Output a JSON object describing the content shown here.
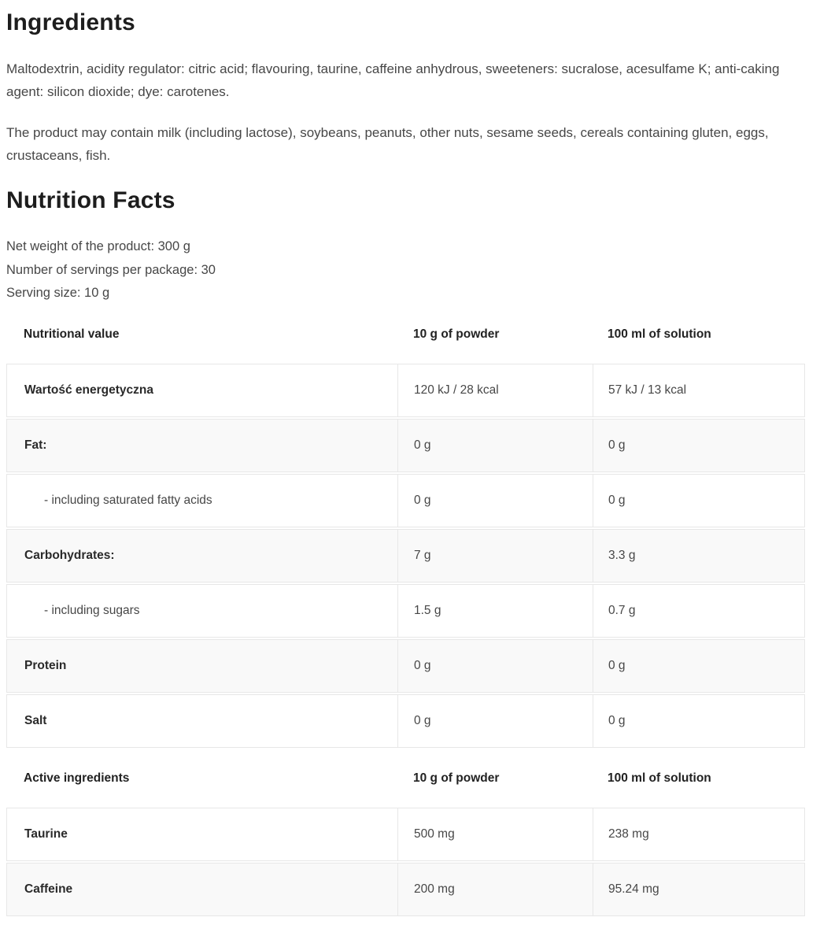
{
  "theme": {
    "heading": "#1d1d1d",
    "body-text": "#474747",
    "label-text": "#2a2a2a",
    "border": "#e7e7e7",
    "stripe": "#f9f9f9",
    "page-bg": "#ffffff"
  },
  "ingredients": {
    "title": "Ingredients",
    "paragraphs": [
      "Maltodextrin, acidity regulator: citric acid; flavouring, taurine, caffeine anhydrous, sweeteners: sucralose, acesulfame K; anti-caking agent: silicon dioxide; dye: carotenes.",
      "The product may contain milk (including lactose), soybeans, peanuts, other nuts, sesame seeds, cereals containing gluten, eggs, crustaceans, fish."
    ]
  },
  "nutrition": {
    "title": "Nutrition Facts",
    "info_lines": [
      "Net weight of the product: 300 g",
      "Number of servings per package: 30",
      "Serving size: 10 g"
    ],
    "tables": [
      {
        "headers": [
          "Nutritional value",
          "10 g of powder",
          "100 ml of solution"
        ],
        "rows": [
          {
            "label": "Wartość energetyczna",
            "powder": "120 kJ / 28 kcal",
            "solution": "57 kJ / 13 kcal"
          },
          {
            "label": "Fat:",
            "powder": "0 g",
            "solution": "0 g"
          },
          {
            "label": "- including saturated fatty acids",
            "powder": "0 g",
            "solution": "0 g"
          },
          {
            "label": "Carbohydrates:",
            "powder": "7 g",
            "solution": "3.3 g"
          },
          {
            "label": "- including sugars",
            "powder": "1.5 g",
            "solution": "0.7 g"
          },
          {
            "label": "Protein",
            "powder": "0 g",
            "solution": "0 g"
          },
          {
            "label": "Salt",
            "powder": "0 g",
            "solution": "0 g"
          }
        ]
      },
      {
        "headers": [
          "Active ingredients",
          "10 g of powder",
          "100 ml of solution"
        ],
        "rows": [
          {
            "label": "Taurine",
            "powder": "500 mg",
            "solution": "238 mg"
          },
          {
            "label": "Caffeine",
            "powder": "200 mg",
            "solution": "95.24 mg"
          }
        ]
      }
    ]
  }
}
